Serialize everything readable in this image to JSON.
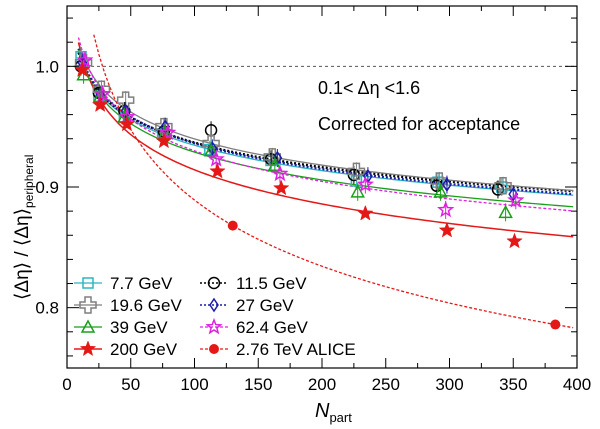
{
  "chart_data": {
    "type": "scatter",
    "title": "",
    "xlabel": {
      "main": "N",
      "sub": "part"
    },
    "ylabel": {
      "l1": "⟨Δη⟩",
      "sep": " / ",
      "l2": "⟨Δη⟩",
      "sub": "peripheral"
    },
    "xlim": [
      0,
      400
    ],
    "ylim": [
      0.75,
      1.05
    ],
    "x_ticks": [
      0,
      50,
      100,
      150,
      200,
      250,
      300,
      350,
      400
    ],
    "y_ticks": [
      0.8,
      0.9,
      1.0
    ],
    "y_tick_labels": [
      "0.8",
      "0.9",
      "1.0"
    ],
    "reference_line": 1.0,
    "annotations": [
      "0.1< Δη <1.6",
      "Corrected for acceptance"
    ],
    "series": [
      {
        "name": "7.7 GeV",
        "color": "#2ab5c0",
        "marker": "open-square",
        "fit": [
          0.96,
          -1.6
        ],
        "points": [
          [
            11,
            1.008
          ],
          [
            25,
            0.975
          ],
          [
            45,
            0.958
          ],
          [
            75,
            0.944
          ],
          [
            112,
            0.931
          ],
          [
            160,
            0.922
          ],
          [
            227,
            0.905
          ],
          [
            291,
            0.904
          ],
          [
            341,
            0.9
          ]
        ]
      },
      {
        "name": "11.5 GeV",
        "color": "#000000",
        "marker": "open-circle",
        "fit": [
          0.92,
          -1.6
        ],
        "points": [
          [
            11,
            1.0
          ],
          [
            25,
            0.978
          ],
          [
            45,
            0.963
          ],
          [
            76,
            0.946
          ],
          [
            113,
            0.947
          ],
          [
            160,
            0.923
          ],
          [
            225,
            0.91
          ],
          [
            290,
            0.901
          ],
          [
            338,
            0.898
          ]
        ]
      },
      {
        "name": "19.6 GeV",
        "color": "#7f7f7f",
        "marker": "open-cross",
        "fit": [
          0.905,
          -1.6
        ],
        "points": [
          [
            13,
            1.003
          ],
          [
            27,
            0.981
          ],
          [
            46,
            0.972
          ],
          [
            76,
            0.95
          ],
          [
            113,
            0.936
          ],
          [
            161,
            0.925
          ],
          [
            227,
            0.913
          ],
          [
            292,
            0.905
          ],
          [
            342,
            0.901
          ]
        ]
      },
      {
        "name": "27 GeV",
        "color": "#1c1caa",
        "marker": "open-diamond",
        "fit": [
          0.91,
          -1.6
        ],
        "points": [
          [
            12,
            1.003
          ],
          [
            26,
            0.976
          ],
          [
            46,
            0.963
          ],
          [
            77,
            0.95
          ],
          [
            114,
            0.932
          ],
          [
            165,
            0.924
          ],
          [
            236,
            0.909
          ],
          [
            298,
            0.902
          ],
          [
            350,
            0.894
          ]
        ]
      },
      {
        "name": "39 GeV",
        "color": "#18a018",
        "marker": "open-triangle",
        "fit": [
          1.0,
          -1.6
        ],
        "points": [
          [
            13,
            0.993
          ],
          [
            26,
            0.975
          ],
          [
            45,
            0.958
          ],
          [
            77,
            0.945
          ],
          [
            113,
            0.93
          ],
          [
            163,
            0.918
          ],
          [
            228,
            0.896
          ],
          [
            293,
            0.896
          ],
          [
            344,
            0.879
          ]
        ]
      },
      {
        "name": "62.4 GeV",
        "color": "#e020e0",
        "marker": "open-star",
        "fit": [
          0.95,
          -1.6
        ],
        "points": [
          [
            14,
            1.005
          ],
          [
            28,
            0.977
          ],
          [
            47,
            0.958
          ],
          [
            79,
            0.945
          ],
          [
            117,
            0.923
          ],
          [
            167,
            0.911
          ],
          [
            234,
            0.902
          ],
          [
            297,
            0.881
          ],
          [
            352,
            0.889
          ]
        ]
      },
      {
        "name": "200 GeV",
        "color": "#e51818",
        "marker": "filled-star",
        "fit": [
          1.0,
          -1.05
        ],
        "points": [
          [
            12,
            0.997
          ],
          [
            26,
            0.968
          ],
          [
            47,
            0.952
          ],
          [
            76,
            0.938
          ],
          [
            118,
            0.913
          ],
          [
            168,
            0.899
          ],
          [
            234,
            0.878
          ],
          [
            298,
            0.864
          ],
          [
            351,
            0.855
          ]
        ]
      },
      {
        "name": "2.76 TeV ALICE",
        "color": "#e51818",
        "marker": "filled-circle",
        "fit": [
          0.72,
          -3.8
        ],
        "points": [
          [
            130,
            0.868
          ],
          [
            383,
            0.786
          ]
        ]
      }
    ]
  }
}
